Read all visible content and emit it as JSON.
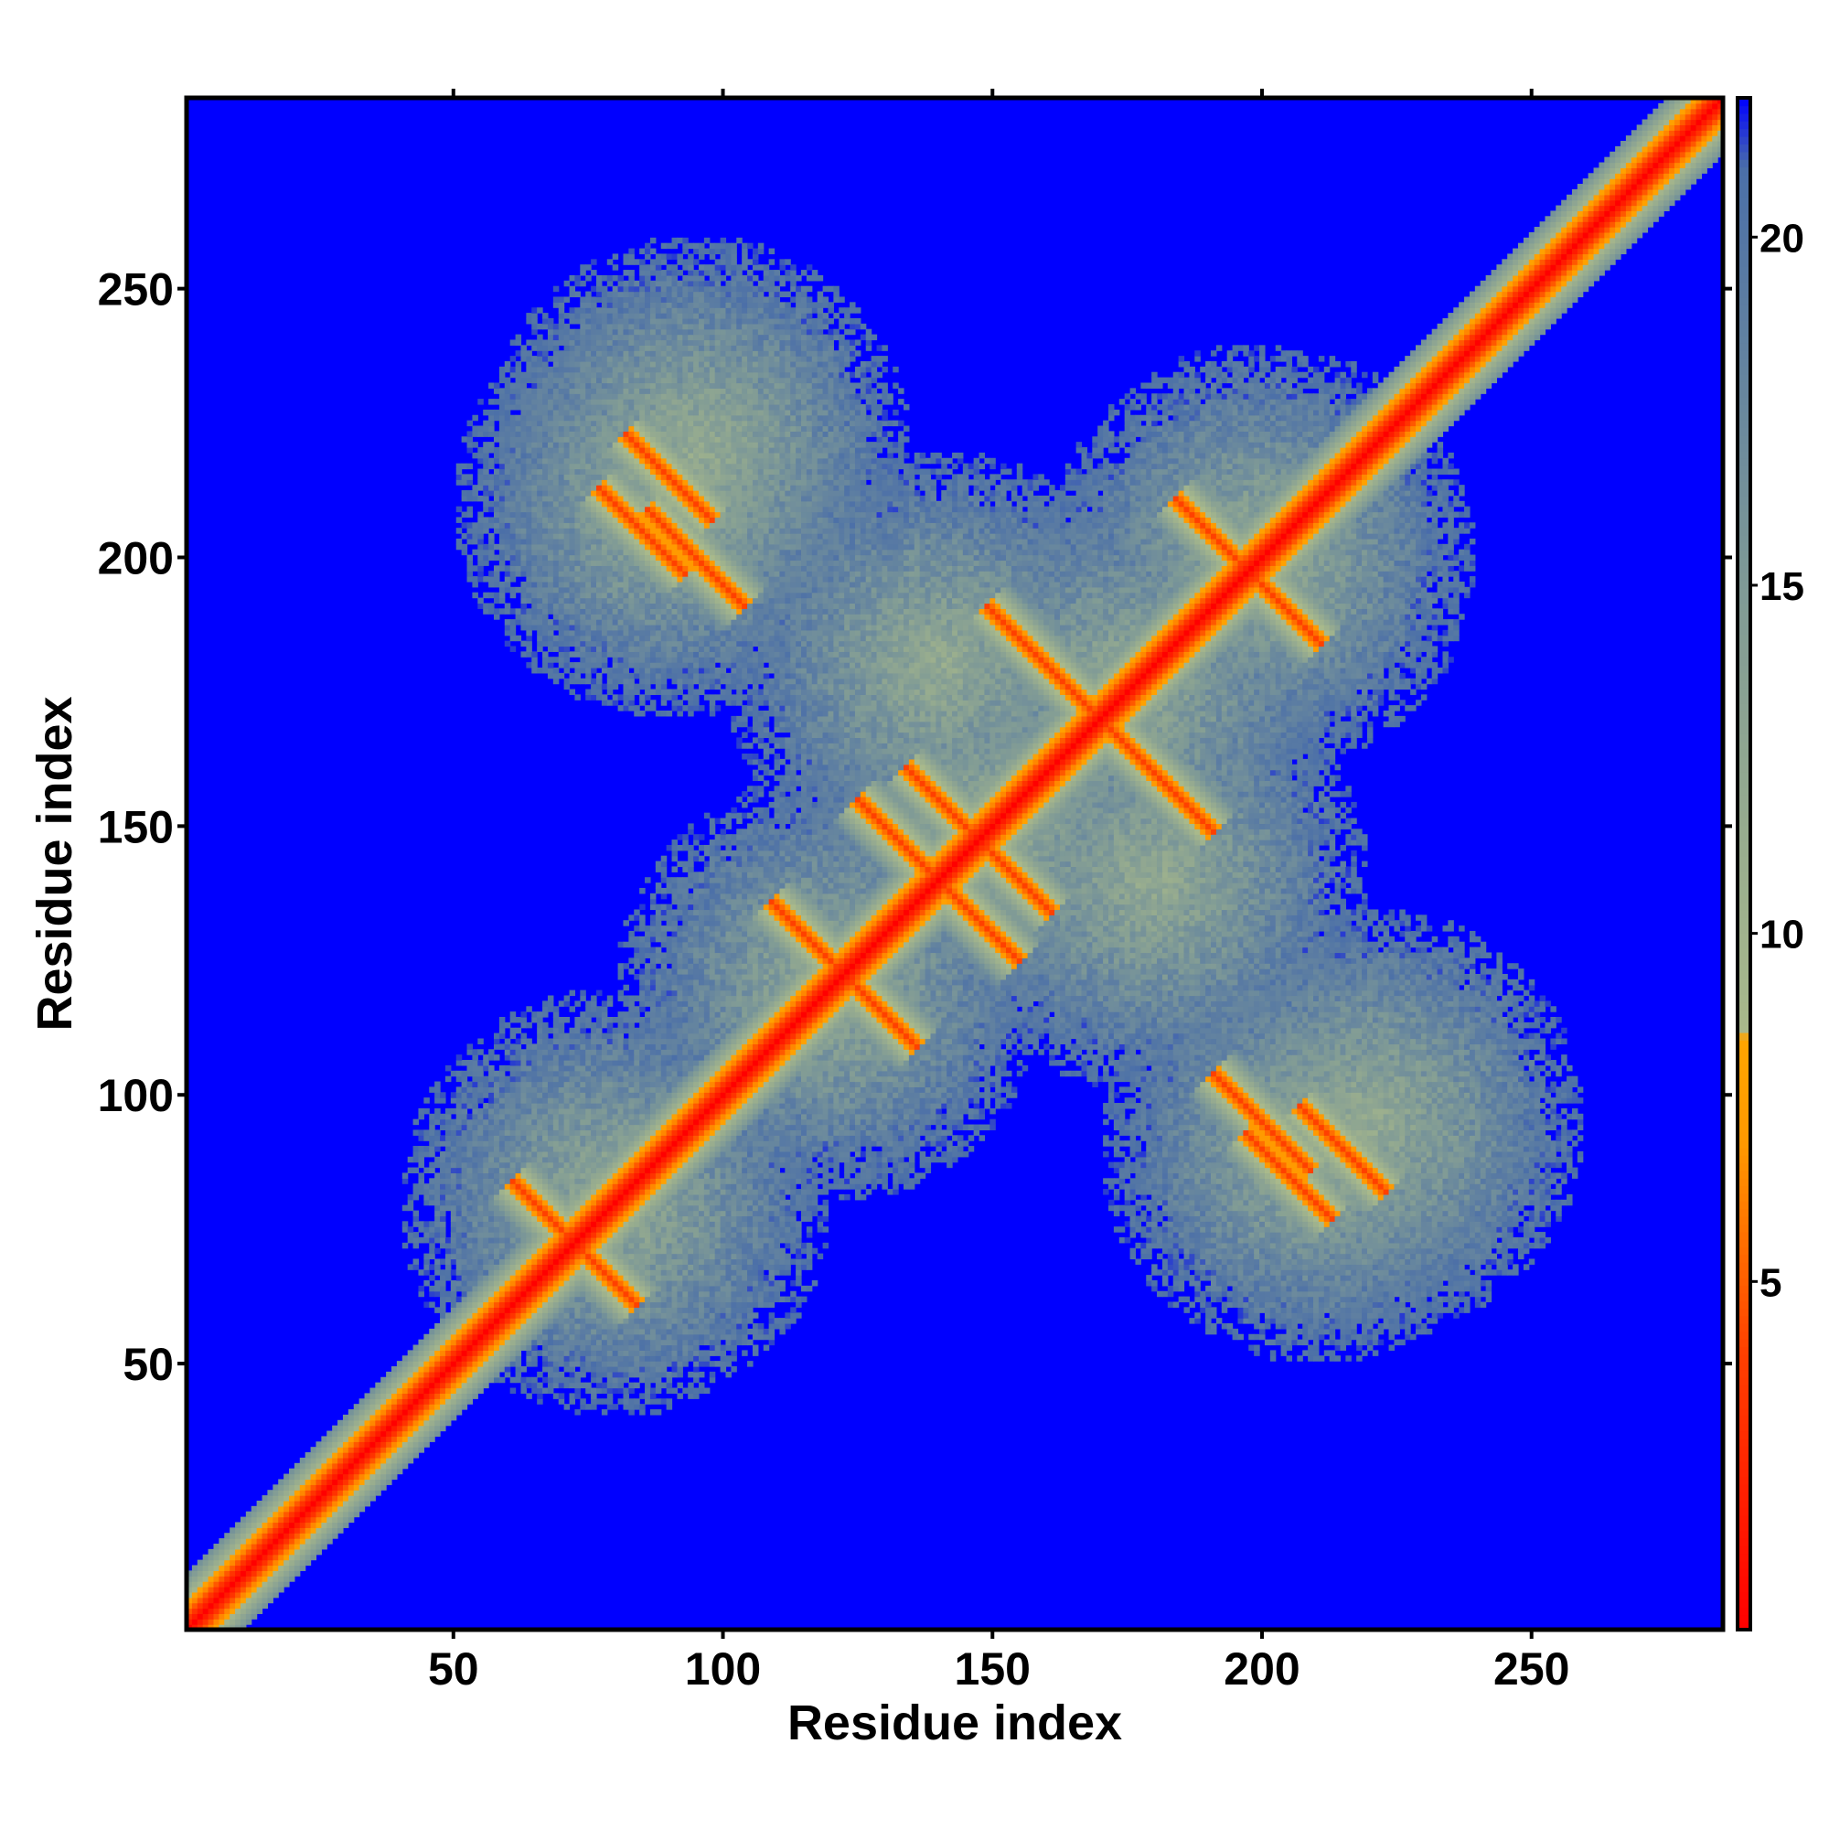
{
  "chart_data": {
    "type": "heatmap",
    "title": "",
    "xlabel": "Residue index",
    "ylabel": "Residue index",
    "n_residues": 285,
    "xlim": [
      1,
      285
    ],
    "ylim": [
      1,
      285
    ],
    "x_ticks": [
      50,
      100,
      150,
      200,
      250
    ],
    "y_ticks": [
      50,
      100,
      150,
      200,
      250
    ],
    "colorbar": {
      "ticks": [
        5,
        10,
        15,
        20
      ],
      "range": [
        0,
        22
      ],
      "colors": [
        {
          "value": 0,
          "color": "#ff0000"
        },
        {
          "value": 4,
          "color": "#ff4000"
        },
        {
          "value": 7,
          "color": "#ff9900"
        },
        {
          "value": 8.5,
          "color": "#ffa500"
        },
        {
          "value": 8.6,
          "color": "#a9b98b"
        },
        {
          "value": 11,
          "color": "#9aae8e"
        },
        {
          "value": 15,
          "color": "#7f9a96"
        },
        {
          "value": 21,
          "color": "#4b6fa8"
        },
        {
          "value": 22,
          "color": "#0000ff"
        }
      ]
    },
    "background_color": "#0000ff",
    "description_features": {
      "diagonal": "distance ~0 along i=j",
      "anti_diagonal_contacts": [
        {
          "center": [
            70,
            75
          ],
          "length": 18
        },
        {
          "center": [
            95,
            200
          ],
          "length": 18
        },
        {
          "center": [
            200,
            95
          ],
          "length": 18
        },
        {
          "center": [
            120,
            125
          ],
          "length": 22
        },
        {
          "center": [
            145,
            150
          ],
          "length": 22
        },
        {
          "center": [
            160,
            180
          ],
          "length": 22
        },
        {
          "center": [
            195,
            200
          ],
          "length": 22
        },
        {
          "center": [
            180,
            160
          ],
          "length": 20
        },
        {
          "center": [
            135,
            145
          ],
          "length": 20
        },
        {
          "center": [
            205,
            85
          ],
          "length": 16
        },
        {
          "center": [
            90,
            215
          ],
          "length": 16
        }
      ]
    }
  }
}
